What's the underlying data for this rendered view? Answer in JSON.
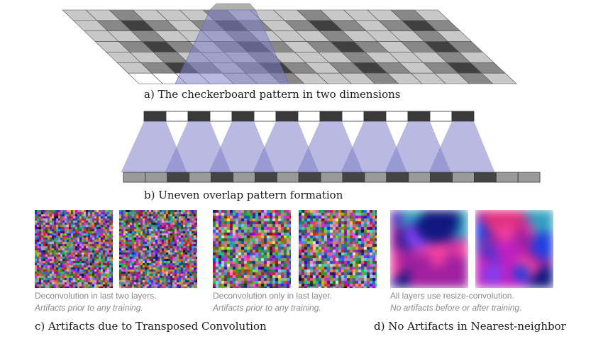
{
  "captions": {
    "a": "a)  The checkerboard pattern in two dimensions",
    "b": "b)  Uneven overlap pattern formation",
    "c": "c)  Artifacts due to Transposed Convolution",
    "d": "d)  No Artifacts in Nearest-neighbor"
  },
  "examples": [
    {
      "line1": "Deconvolution in last two layers.",
      "line2": "Artifacts prior to any training."
    },
    {
      "line1": "Deconvolution only in last layer.",
      "line2": "Artifacts prior to any training."
    },
    {
      "line1": "All layers use resize-convolution.",
      "line2": "No artifacts before or after training."
    }
  ],
  "colors": {
    "overlap": "#8080c8",
    "dark": "#404040",
    "mid": "#888888",
    "light": "#c8c8c8",
    "white": "#ffffff",
    "caption_gray": "#8a8a8a"
  },
  "overlap_pattern_1d": [
    1,
    1,
    2,
    1,
    2,
    1,
    2,
    1,
    2,
    1,
    2,
    1,
    2,
    1,
    2,
    1,
    2,
    1,
    1
  ],
  "input_pattern_1d": [
    1,
    0,
    1,
    0,
    1,
    0,
    1,
    0,
    1,
    0,
    1,
    0,
    1,
    0,
    1
  ]
}
